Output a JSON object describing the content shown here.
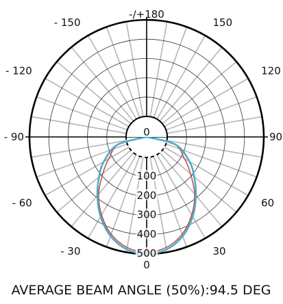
{
  "chart_data": {
    "type": "polar",
    "title": "",
    "caption": "AVERAGE BEAM ANGLE (50%):94.5 DEG",
    "angle_labels": [
      {
        "angle": 180,
        "text": "-/+180"
      },
      {
        "angle": -150,
        "text": "- 150"
      },
      {
        "angle": 150,
        "text": "150"
      },
      {
        "angle": -120,
        "text": "- 120"
      },
      {
        "angle": 120,
        "text": "120"
      },
      {
        "angle": -90,
        "text": "- 90"
      },
      {
        "angle": 90,
        "text": "90"
      },
      {
        "angle": -60,
        "text": "- 60"
      },
      {
        "angle": 60,
        "text": "60"
      },
      {
        "angle": -30,
        "text": "- 30"
      },
      {
        "angle": 30,
        "text": "30"
      },
      {
        "angle": 0,
        "text": "0"
      }
    ],
    "radial_ticks": [
      {
        "value": 0,
        "text": "0"
      },
      {
        "value": 100,
        "text": "100"
      },
      {
        "value": 200,
        "text": "200"
      },
      {
        "value": 300,
        "text": "300"
      },
      {
        "value": 400,
        "text": "400"
      },
      {
        "value": 500,
        "text": "500"
      }
    ],
    "rlim": [
      0,
      500
    ],
    "series": [
      {
        "color": "#c0504d",
        "angles": [
          -90,
          -75,
          -60,
          -50,
          -40,
          -30,
          -20,
          -10,
          0,
          10,
          20,
          30,
          40,
          50,
          60,
          75,
          90
        ],
        "values": [
          0,
          45,
          120,
          190,
          280,
          360,
          430,
          475,
          490,
          475,
          430,
          360,
          280,
          190,
          120,
          45,
          0
        ]
      },
      {
        "color": "#4bacc6",
        "angles": [
          -90,
          -75,
          -60,
          -50,
          -40,
          -30,
          -20,
          -10,
          0,
          10,
          20,
          30,
          40,
          50,
          60,
          75,
          90
        ],
        "values": [
          0,
          50,
          150,
          215,
          290,
          370,
          440,
          485,
          500,
          485,
          440,
          370,
          290,
          215,
          150,
          50,
          0
        ]
      }
    ]
  }
}
